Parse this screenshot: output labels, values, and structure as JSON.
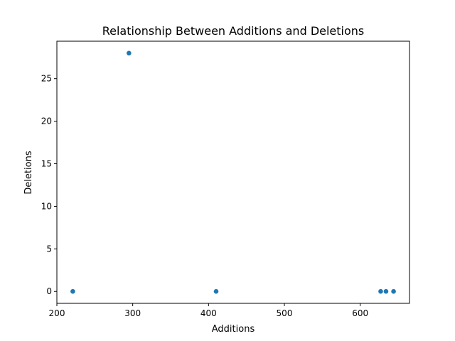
{
  "chart_data": {
    "type": "scatter",
    "title": "Relationship Between Additions and Deletions",
    "xlabel": "Additions",
    "ylabel": "Deletions",
    "xlim": [
      200,
      665
    ],
    "ylim": [
      -1.4,
      29.4
    ],
    "xticks": [
      200,
      300,
      400,
      500,
      600
    ],
    "yticks": [
      0,
      5,
      10,
      15,
      20,
      25
    ],
    "grid": false,
    "series": [
      {
        "color": "#1f77b4",
        "points": [
          {
            "x": 221,
            "y": 0
          },
          {
            "x": 295,
            "y": 28
          },
          {
            "x": 410,
            "y": 0
          },
          {
            "x": 627,
            "y": 0
          },
          {
            "x": 634,
            "y": 0
          },
          {
            "x": 644,
            "y": 0
          }
        ]
      }
    ]
  }
}
